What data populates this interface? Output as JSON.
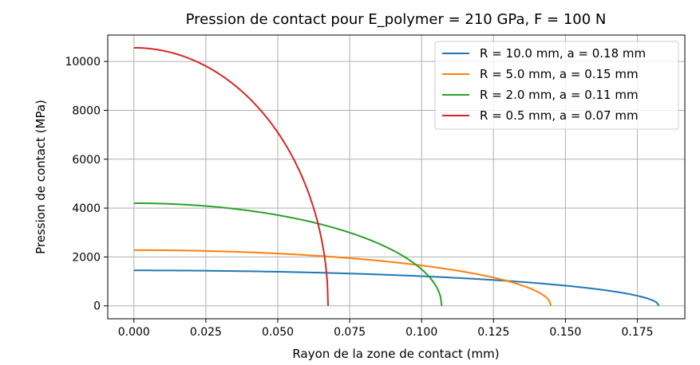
{
  "chart_data": {
    "type": "line",
    "title": "Pression de contact pour E_polymer = 210 GPa, F = 100 N",
    "xlabel": "Rayon de la zone de contact (mm)",
    "ylabel": "Pression de contact (MPa)",
    "xlim": [
      -0.0091,
      0.1915
    ],
    "ylim": [
      -530,
      11080
    ],
    "xticks": [
      0.0,
      0.025,
      0.05,
      0.075,
      0.1,
      0.125,
      0.15,
      0.175
    ],
    "xtick_labels": [
      "0.000",
      "0.025",
      "0.050",
      "0.075",
      "0.100",
      "0.125",
      "0.150",
      "0.175"
    ],
    "yticks": [
      0,
      2000,
      4000,
      6000,
      8000,
      10000
    ],
    "ytick_labels": [
      "0",
      "2000",
      "4000",
      "6000",
      "8000",
      "10000"
    ],
    "grid": true,
    "legend_position": "upper right",
    "curve_shape": "p0 * sqrt(1 - (r/a)^2)",
    "series": [
      {
        "name": "R = 10.0 mm, a = 0.18 mm",
        "a": 0.1825,
        "p0": 1450,
        "color": "#1f77b4"
      },
      {
        "name": "R = 5.0 mm, a = 0.15 mm",
        "a": 0.145,
        "p0": 2280,
        "color": "#ff7f0e"
      },
      {
        "name": "R = 2.0 mm, a = 0.11 mm",
        "a": 0.107,
        "p0": 4200,
        "color": "#2ca02c"
      },
      {
        "name": "R = 0.5 mm, a = 0.07 mm",
        "a": 0.0675,
        "p0": 10560,
        "color": "#d62728"
      }
    ]
  }
}
